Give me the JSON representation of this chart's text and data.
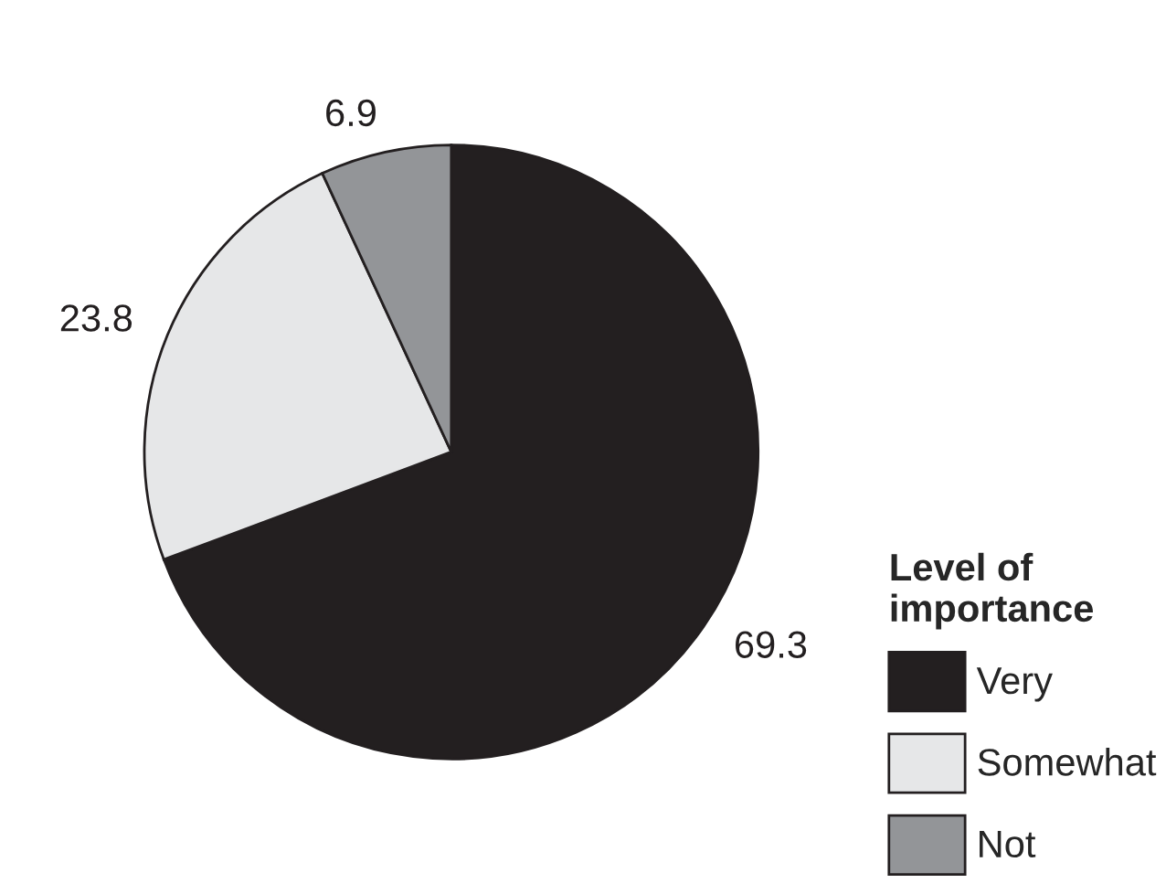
{
  "chart_data": {
    "type": "pie",
    "legend_title": "Level of importance",
    "legend": "bottom right",
    "categories": [
      "Very",
      "Somewhat",
      "Not"
    ],
    "values": [
      69.3,
      23.8,
      6.9
    ],
    "colors": [
      "#231f20",
      "#e6e7e8",
      "#939598"
    ],
    "data_labels": true
  }
}
